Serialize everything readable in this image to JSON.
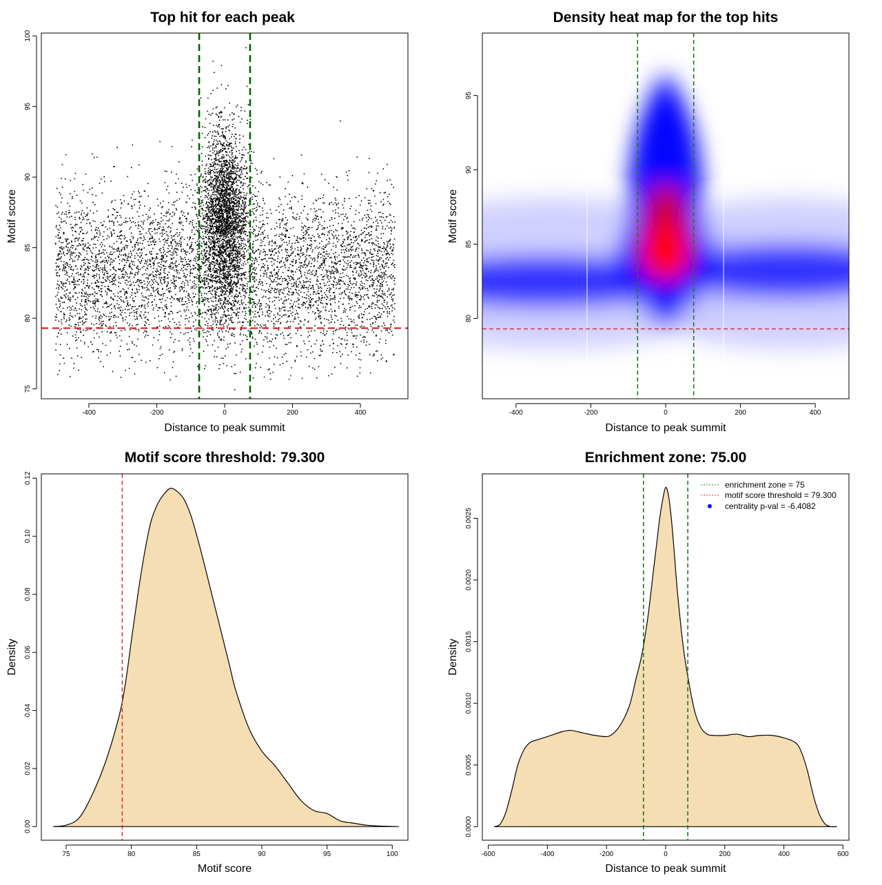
{
  "colors": {
    "threshold": "#d62728",
    "zone": "#1a7a1a",
    "zone_dark": "#006400",
    "fill": "#f5deb3",
    "points": "#000000",
    "heat_low": "#ffffff",
    "heat_mid": "#0000ff",
    "heat_high": "#ff0000",
    "legend_dot": "#0000ff"
  },
  "chart_data": [
    {
      "id": "scatter",
      "type": "scatter",
      "title": "Top hit for each peak",
      "xlabel": "Distance to peak summit",
      "ylabel": "Motif score",
      "xlim": [
        -540,
        540
      ],
      "ylim": [
        74.3,
        100.2
      ],
      "xticks": [
        -400,
        -200,
        0,
        200,
        400
      ],
      "yticks": [
        75,
        80,
        85,
        90,
        95,
        100
      ],
      "vlines": [
        -75,
        75
      ],
      "hline": 79.3,
      "approx_points": 16000,
      "background_x_range": [
        -500,
        500
      ],
      "background_score_mean": 83.3,
      "background_score_sd": 2.8,
      "central_score_mean": 86,
      "central_score_sd": 3.6,
      "central_max_score": 99.2,
      "grid": false
    },
    {
      "id": "heatmap",
      "type": "heatmap",
      "title": "Density heat map for the top hits",
      "xlabel": "Distance to peak summit",
      "ylabel": "Motif score",
      "xlim": [
        -490,
        490
      ],
      "ylim": [
        74.6,
        99.2
      ],
      "xticks": [
        -400,
        -200,
        0,
        200,
        400
      ],
      "yticks": [
        80,
        85,
        90,
        95
      ],
      "vlines": [
        -75,
        75
      ],
      "hline": 79.3,
      "peak": [
        0,
        84.5
      ],
      "white_lines_x": [
        -210,
        155
      ],
      "grid": false
    },
    {
      "id": "score_density",
      "type": "area",
      "title": "Motif score threshold: 79.300",
      "xlabel": "Motif score",
      "ylabel": "Density",
      "xlim": [
        73.1,
        101.2
      ],
      "ylim": [
        -0.0047,
        0.1215
      ],
      "xticks": [
        75,
        80,
        85,
        90,
        95,
        100
      ],
      "yticks": [
        0.0,
        0.02,
        0.04,
        0.06,
        0.08,
        0.1,
        0.12
      ],
      "ytick_labels": [
        "0.00",
        "0.02",
        "0.04",
        "0.06",
        "0.08",
        "0.10",
        "0.12"
      ],
      "vline": 79.3,
      "x": [
        74.0,
        75.0,
        76.0,
        77.0,
        78.0,
        79.0,
        79.5,
        80.0,
        80.5,
        81.0,
        81.5,
        82.0,
        82.5,
        83.0,
        83.5,
        84.0,
        84.5,
        85.0,
        85.5,
        86.0,
        86.5,
        87.0,
        87.5,
        88.0,
        89.0,
        90.0,
        91.0,
        92.0,
        93.0,
        94.0,
        95.0,
        96.0,
        97.0,
        98.0,
        99.0,
        100.5
      ],
      "y": [
        0.0,
        0.0005,
        0.003,
        0.011,
        0.022,
        0.037,
        0.048,
        0.064,
        0.08,
        0.094,
        0.105,
        0.111,
        0.1145,
        0.1165,
        0.1155,
        0.113,
        0.108,
        0.1005,
        0.092,
        0.083,
        0.074,
        0.065,
        0.056,
        0.047,
        0.034,
        0.026,
        0.021,
        0.015,
        0.009,
        0.0055,
        0.0045,
        0.002,
        0.0012,
        0.0005,
        0.0002,
        0.0
      ]
    },
    {
      "id": "distance_density",
      "type": "area",
      "title": "Enrichment zone: 75.00",
      "xlabel": "Distance to peak summit",
      "ylabel": "Density",
      "xlim": [
        -620,
        620
      ],
      "ylim": [
        -0.00011,
        0.00286
      ],
      "xticks": [
        -600,
        -400,
        -200,
        0,
        200,
        400,
        600
      ],
      "yticks": [
        0.0,
        0.0005,
        0.001,
        0.0015,
        0.002,
        0.0025
      ],
      "ytick_labels": [
        "0.0000",
        "0.0005",
        "0.0010",
        "0.0015",
        "0.0020",
        "0.0025"
      ],
      "vlines": [
        -75,
        75
      ],
      "x": [
        -580,
        -560,
        -540,
        -520,
        -500,
        -480,
        -460,
        -440,
        -400,
        -350,
        -320,
        -280,
        -240,
        -200,
        -180,
        -160,
        -140,
        -120,
        -100,
        -80,
        -60,
        -40,
        -30,
        -20,
        -10,
        0,
        10,
        20,
        30,
        40,
        60,
        80,
        100,
        120,
        140,
        160,
        200,
        240,
        280,
        320,
        360,
        400,
        440,
        460,
        480,
        500,
        520,
        540,
        560,
        580
      ],
      "y": [
        0.0,
        2e-05,
        0.00012,
        0.0003,
        0.0005,
        0.00062,
        0.00068,
        0.0007,
        0.00073,
        0.00077,
        0.00078,
        0.00076,
        0.00074,
        0.00073,
        0.00075,
        0.0008,
        0.00088,
        0.001,
        0.0012,
        0.0014,
        0.0017,
        0.0021,
        0.0023,
        0.0025,
        0.00265,
        0.00275,
        0.00268,
        0.00248,
        0.0022,
        0.0019,
        0.00145,
        0.00115,
        0.00092,
        0.0008,
        0.00075,
        0.00074,
        0.00074,
        0.00075,
        0.00073,
        0.00074,
        0.00074,
        0.00072,
        0.00068,
        0.0006,
        0.00045,
        0.00025,
        0.0001,
        2e-05,
        0.0,
        0.0
      ],
      "legend": {
        "placement": "top-right",
        "entries": [
          {
            "label": "enrichment zone = 75",
            "style": "dotted-line",
            "color": "#1a7a1a"
          },
          {
            "label": "motif score threshold = 79.300",
            "style": "dotted-line",
            "color": "#d62728"
          },
          {
            "label": "centrality p-val = -6.4082",
            "style": "dot",
            "color": "#0000ff"
          }
        ]
      }
    }
  ]
}
